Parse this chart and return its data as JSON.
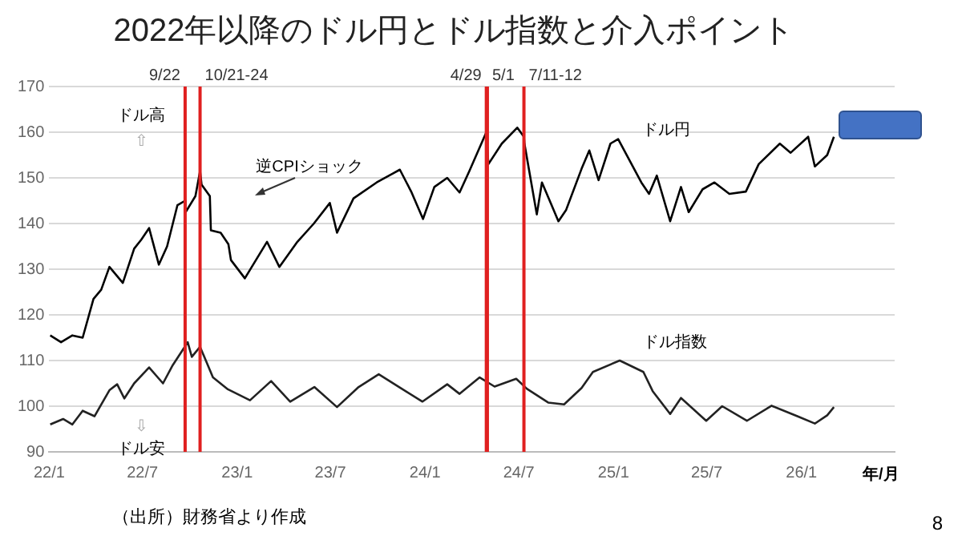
{
  "chart_data": {
    "type": "line",
    "title": "2022年以降のドル円とドル指数と介入ポイント",
    "xlabel": "年/月",
    "xlim": [
      "2022-01-01",
      "2026-07-01"
    ],
    "xticks": [
      {
        "value": "2022-01-01",
        "label": "22/1"
      },
      {
        "value": "2022-07-01",
        "label": "22/7"
      },
      {
        "value": "2023-01-01",
        "label": "23/1"
      },
      {
        "value": "2023-07-01",
        "label": "23/7"
      },
      {
        "value": "2024-01-01",
        "label": "24/1"
      },
      {
        "value": "2024-07-01",
        "label": "24/7"
      },
      {
        "value": "2025-01-01",
        "label": "25/1"
      },
      {
        "value": "2025-07-01",
        "label": "25/7"
      },
      {
        "value": "2026-01-01",
        "label": "26/1"
      }
    ],
    "ylim": [
      90,
      170
    ],
    "yticks": [
      90,
      100,
      110,
      120,
      130,
      140,
      150,
      160,
      170
    ],
    "grid": "y",
    "legend": false,
    "marker": "none",
    "line_style": "solid",
    "series": [
      {
        "name": "ドル円",
        "color": "#000000",
        "x": [
          "2022-01-03",
          "2022-01-24",
          "2022-02-15",
          "2022-03-07",
          "2022-03-28",
          "2022-04-12",
          "2022-04-28",
          "2022-05-24",
          "2022-06-15",
          "2022-06-29",
          "2022-07-14",
          "2022-08-02",
          "2022-08-18",
          "2022-09-07",
          "2022-09-22",
          "2022-09-23",
          "2022-10-12",
          "2022-10-21",
          "2022-10-24",
          "2022-11-09",
          "2022-11-11",
          "2022-11-30",
          "2022-12-15",
          "2022-12-20",
          "2023-01-16",
          "2023-02-28",
          "2023-03-24",
          "2023-04-28",
          "2023-05-30",
          "2023-06-30",
          "2023-07-14",
          "2023-08-15",
          "2023-09-29",
          "2023-10-31",
          "2023-11-13",
          "2023-12-05",
          "2023-12-28",
          "2024-01-19",
          "2024-02-13",
          "2024-03-08",
          "2024-03-27",
          "2024-04-29",
          "2024-05-03",
          "2024-05-29",
          "2024-06-28",
          "2024-07-11",
          "2024-07-12",
          "2024-08-05",
          "2024-08-15",
          "2024-09-16",
          "2024-10-01",
          "2024-10-31",
          "2024-11-15",
          "2024-12-03",
          "2024-12-26",
          "2025-01-10",
          "2025-02-24",
          "2025-03-11",
          "2025-03-26",
          "2025-04-21",
          "2025-05-12",
          "2025-05-27",
          "2025-06-23",
          "2025-07-16",
          "2025-08-14",
          "2025-09-15",
          "2025-10-10",
          "2025-11-20",
          "2025-12-11",
          "2026-01-14",
          "2026-01-27",
          "2026-02-20",
          "2026-03-05"
        ],
        "values": [
          115.5,
          114,
          115.5,
          115,
          123.5,
          125.5,
          130.5,
          127,
          134.5,
          136.5,
          139,
          131,
          135,
          144,
          145,
          142.5,
          146,
          151.5,
          148.5,
          146,
          138.5,
          138,
          135.5,
          132,
          128,
          136,
          130.5,
          136,
          140,
          144.5,
          138,
          145.5,
          149,
          151,
          151.8,
          147,
          141,
          148,
          150,
          146.8,
          151.5,
          160,
          153,
          157.5,
          161,
          159,
          157.5,
          142,
          149,
          140.5,
          143,
          152,
          156,
          149.5,
          157.5,
          158.5,
          149,
          146.5,
          150.5,
          140.5,
          148,
          142.5,
          147.5,
          149,
          146.5,
          147,
          153,
          157.5,
          155.5,
          159,
          152.5,
          155,
          159
        ]
      },
      {
        "name": "ドル指数",
        "color": "#222222",
        "x": [
          "2022-01-03",
          "2022-01-28",
          "2022-02-15",
          "2022-03-07",
          "2022-03-30",
          "2022-04-28",
          "2022-05-13",
          "2022-05-27",
          "2022-06-15",
          "2022-07-14",
          "2022-08-10",
          "2022-08-29",
          "2022-09-27",
          "2022-10-05",
          "2022-10-21",
          "2022-11-15",
          "2022-12-14",
          "2023-01-26",
          "2023-03-08",
          "2023-04-14",
          "2023-05-31",
          "2023-07-14",
          "2023-08-25",
          "2023-10-03",
          "2023-11-14",
          "2023-12-27",
          "2024-02-13",
          "2024-03-08",
          "2024-04-16",
          "2024-05-15",
          "2024-06-26",
          "2024-07-17",
          "2024-08-27",
          "2024-09-27",
          "2024-10-31",
          "2024-11-22",
          "2025-01-13",
          "2025-02-28",
          "2025-03-18",
          "2025-04-21",
          "2025-05-12",
          "2025-06-30",
          "2025-07-31",
          "2025-09-17",
          "2025-11-04",
          "2025-12-24",
          "2026-01-27",
          "2026-02-20",
          "2026-03-05"
        ],
        "values": [
          96,
          97.2,
          96,
          99,
          97.8,
          103.5,
          104.8,
          101.7,
          105,
          108.5,
          105,
          109,
          114,
          110.8,
          113,
          106.3,
          103.7,
          101.3,
          105.5,
          101,
          104.2,
          99.8,
          104.2,
          107,
          104,
          101,
          104.8,
          102.7,
          106.3,
          104.3,
          106,
          103.8,
          100.8,
          100.4,
          104,
          107.5,
          110,
          107.5,
          103.3,
          98.3,
          101.8,
          96.8,
          100,
          96.8,
          100.1,
          97.8,
          96.2,
          98,
          99.8
        ]
      }
    ],
    "ref_lines": [
      {
        "axis": "x",
        "value": "2022-09-22",
        "label": "9/22",
        "color": "#e02020"
      },
      {
        "axis": "x",
        "value": "2022-10-21",
        "label": "10/21-24",
        "color": "#e02020"
      },
      {
        "axis": "x",
        "value": "2024-04-29",
        "label": "4/29",
        "color": "#e02020"
      },
      {
        "axis": "x",
        "value": "2024-05-01",
        "label": "5/1",
        "color": "#e02020"
      },
      {
        "axis": "x",
        "value": "2024-07-11",
        "label": "7/11-12",
        "color": "#e02020"
      }
    ],
    "annotations": [
      "ドル高",
      "⇧",
      "⇩",
      "ドル安",
      "逆CPIショック",
      "（出所）財務省より作成",
      "8"
    ]
  }
}
